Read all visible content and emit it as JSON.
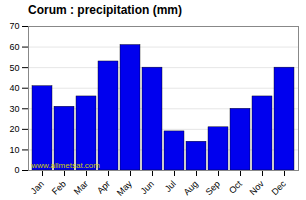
{
  "chart_data": {
    "type": "bar",
    "title": "Corum : precipitation (mm)",
    "categories": [
      "Jan",
      "Feb",
      "Mar",
      "Apr",
      "May",
      "Jun",
      "Jul",
      "Aug",
      "Sep",
      "Oct",
      "Nov",
      "Dec"
    ],
    "values": [
      41,
      31,
      36,
      53,
      61,
      50,
      19,
      14,
      21,
      30,
      36,
      50
    ],
    "color": "#0000ee",
    "ylim": [
      0,
      70
    ],
    "yticks": [
      0,
      10,
      20,
      30,
      40,
      50,
      60,
      70
    ],
    "grid": true,
    "annotations": [
      "www.allmetsat.com"
    ]
  }
}
